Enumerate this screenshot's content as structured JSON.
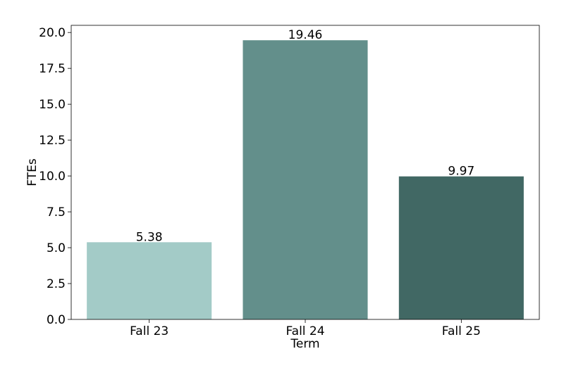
{
  "chart_data": {
    "type": "bar",
    "categories": [
      "Fall 23",
      "Fall 24",
      "Fall 25"
    ],
    "values": [
      5.38,
      19.46,
      9.97
    ],
    "data_labels": [
      "5.38",
      "19.46",
      "9.97"
    ],
    "colors": [
      "#a3cbc7",
      "#638f8b",
      "#416864"
    ],
    "title": "",
    "xlabel": "Term",
    "ylabel": "FTEs",
    "ylim": [
      0,
      20.5
    ],
    "yticks": [
      0,
      2.5,
      5,
      7.5,
      10,
      12.5,
      15,
      17.5,
      20
    ],
    "ytick_labels": [
      "0.0",
      "2.5",
      "5.0",
      "7.5",
      "10.0",
      "12.5",
      "15.0",
      "17.5",
      "20.0"
    ],
    "grid": false,
    "legend": "none"
  }
}
